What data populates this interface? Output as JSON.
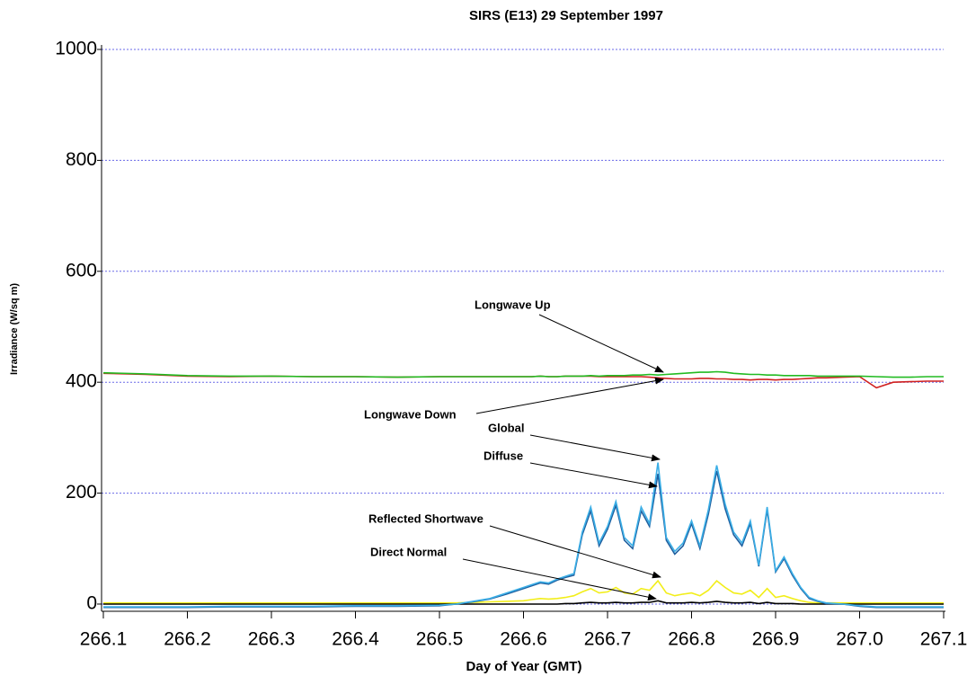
{
  "chart_data": {
    "type": "line",
    "title": "SIRS (E13) 29 September 1997",
    "xlabel": "Day of Year (GMT)",
    "ylabel": "Irradiance (W/sq m)",
    "x": [
      266.1,
      266.15,
      266.2,
      266.25,
      266.3,
      266.35,
      266.4,
      266.45,
      266.5,
      266.52,
      266.54,
      266.56,
      266.58,
      266.6,
      266.61,
      266.62,
      266.63,
      266.64,
      266.65,
      266.66,
      266.67,
      266.68,
      266.69,
      266.7,
      266.71,
      266.72,
      266.73,
      266.74,
      266.75,
      266.76,
      266.77,
      266.78,
      266.79,
      266.8,
      266.81,
      266.82,
      266.83,
      266.84,
      266.85,
      266.86,
      266.87,
      266.88,
      266.89,
      266.9,
      266.91,
      266.92,
      266.93,
      266.94,
      266.95,
      266.96,
      266.98,
      267.0,
      267.02,
      267.04,
      267.06,
      267.08,
      267.1
    ],
    "series": [
      {
        "name": "Longwave Up",
        "color": "#22bb22",
        "values": [
          417,
          415,
          412,
          411,
          411,
          410,
          410,
          409,
          410,
          410,
          410,
          410,
          410,
          410,
          410,
          411,
          410,
          410,
          411,
          411,
          411,
          412,
          411,
          412,
          412,
          412,
          413,
          413,
          414,
          413,
          414,
          415,
          416,
          417,
          418,
          418,
          419,
          418,
          416,
          415,
          414,
          414,
          413,
          413,
          412,
          412,
          412,
          412,
          411,
          411,
          411,
          411,
          410,
          409,
          409,
          410,
          410
        ]
      },
      {
        "name": "Longwave Down",
        "color": "#d02020",
        "values": [
          416,
          414,
          411,
          410,
          411,
          410,
          410,
          409,
          410,
          410,
          410,
          410,
          410,
          410,
          410,
          411,
          410,
          410,
          411,
          411,
          411,
          411,
          410,
          410,
          410,
          410,
          410,
          410,
          409,
          408,
          407,
          406,
          406,
          406,
          407,
          407,
          406,
          406,
          405,
          405,
          404,
          405,
          405,
          404,
          405,
          405,
          406,
          407,
          408,
          408,
          409,
          410,
          390,
          400,
          401,
          402,
          402
        ]
      },
      {
        "name": "Global",
        "color": "#3aaee6",
        "values": [
          -5,
          -5,
          -5,
          -4,
          -4,
          -4,
          -3,
          -3,
          -2,
          0,
          5,
          10,
          20,
          30,
          35,
          40,
          38,
          45,
          50,
          55,
          130,
          175,
          110,
          140,
          185,
          120,
          105,
          175,
          145,
          255,
          120,
          95,
          110,
          150,
          105,
          170,
          250,
          180,
          130,
          110,
          150,
          70,
          175,
          60,
          85,
          55,
          30,
          12,
          6,
          2,
          0,
          -3,
          -5,
          -5,
          -5,
          -5,
          -5
        ]
      },
      {
        "name": "Diffuse",
        "color": "#1f5f9f",
        "values": [
          -6,
          -6,
          -6,
          -5,
          -5,
          -5,
          -4,
          -4,
          -3,
          0,
          4,
          9,
          18,
          28,
          33,
          38,
          36,
          43,
          48,
          52,
          125,
          168,
          105,
          135,
          178,
          115,
          100,
          168,
          140,
          235,
          115,
          90,
          105,
          145,
          100,
          162,
          240,
          172,
          125,
          105,
          145,
          68,
          170,
          58,
          82,
          52,
          28,
          10,
          5,
          1,
          0,
          -4,
          -6,
          -6,
          -6,
          -6,
          -6
        ]
      },
      {
        "name": "Reflected Shortwave",
        "color": "#f2ee1a",
        "values": [
          2,
          2,
          2,
          2,
          2,
          2,
          2,
          2,
          2,
          2,
          3,
          4,
          5,
          6,
          8,
          10,
          9,
          10,
          12,
          15,
          22,
          28,
          20,
          22,
          30,
          20,
          18,
          28,
          25,
          42,
          20,
          15,
          18,
          20,
          15,
          25,
          42,
          30,
          20,
          18,
          25,
          12,
          28,
          12,
          15,
          10,
          6,
          3,
          2,
          2,
          2,
          2,
          2,
          2,
          2,
          2,
          2
        ]
      },
      {
        "name": "Direct Normal",
        "color": "#000000",
        "values": [
          0,
          0,
          0,
          0,
          0,
          0,
          0,
          0,
          0,
          0,
          0,
          0,
          0,
          0,
          0,
          0,
          0,
          0,
          1,
          1,
          2,
          3,
          2,
          2,
          3,
          2,
          2,
          3,
          3,
          6,
          2,
          2,
          2,
          3,
          2,
          3,
          5,
          3,
          2,
          2,
          3,
          1,
          3,
          1,
          1,
          1,
          0,
          0,
          0,
          0,
          0,
          0,
          0,
          0,
          0,
          0,
          0
        ]
      }
    ],
    "xlim": [
      266.1,
      267.1
    ],
    "xticks": [
      266.1,
      266.2,
      266.3,
      266.4,
      266.5,
      266.6,
      266.7,
      266.8,
      266.9,
      {
        "value": 267,
        "label": "267.0"
      },
      267.1
    ],
    "ylim": [
      -13,
      1000
    ],
    "yticks": [
      0,
      200,
      400,
      600,
      800,
      1000
    ],
    "grid": true,
    "grid_color": "#6a6ae8"
  }
}
